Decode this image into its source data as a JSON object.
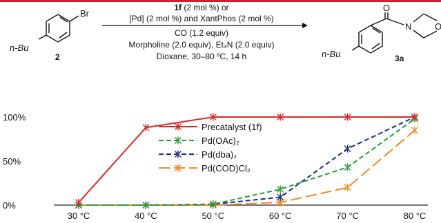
{
  "accent_color": "#d0202e",
  "scheme": {
    "reactant_label": "2",
    "reactant_substituent": "n-Bu",
    "reactant_halide": "Br",
    "product_label": "3a",
    "product_substituent": "n-Bu",
    "product_atoms": {
      "oxygen": "O",
      "nitrogen": "N",
      "ring_oxygen": "O"
    },
    "conditions": [
      {
        "bold": "1f",
        "text": " (2 mol %) or"
      },
      {
        "text": "[Pd] (2 mol %) and XantPhos (2 mol %)"
      },
      {
        "text": "CO (1.2 equiv)"
      },
      {
        "text": "Morpholine (2.0 equiv), Et₃N (2.0 equiv)"
      },
      {
        "text": "Dioxane, 30–80 ºC, 14 h"
      }
    ]
  },
  "chart_data": {
    "type": "line",
    "categories": [
      "30 °C",
      "40 °C",
      "50 °C",
      "60 °C",
      "70 °C",
      "80 °C"
    ],
    "ylim": [
      0,
      100
    ],
    "yticks": [
      0,
      50,
      100
    ],
    "ytick_labels": [
      "0%",
      "50%",
      "100%"
    ],
    "grid": false,
    "legend_position": "center-left",
    "series": [
      {
        "name": "Precatalyst (1f)",
        "color": "#d42a2a",
        "dash": "solid",
        "values": [
          3,
          88,
          100,
          100,
          100,
          100
        ]
      },
      {
        "name": "Pd(OAc)₂",
        "color": "#2b9a35",
        "dash": "dashed",
        "values": [
          0,
          0,
          1,
          18,
          43,
          98
        ]
      },
      {
        "name": "Pd(dba)₂",
        "color": "#1d2d7a",
        "dash": "dashed",
        "values": [
          0,
          0,
          1,
          9,
          64,
          100
        ]
      },
      {
        "name": "Pd(COD)Cl₂",
        "color": "#f08a2a",
        "dash": "longdash",
        "values": [
          0,
          0,
          0,
          3,
          20,
          85
        ]
      }
    ]
  }
}
